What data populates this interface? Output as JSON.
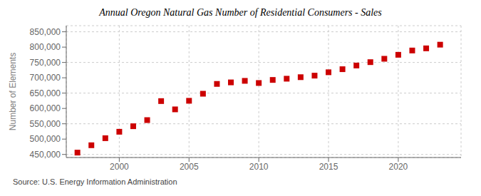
{
  "chart_data": {
    "type": "scatter",
    "title": "Annual Oregon Natural Gas Number of Residential Consumers - Sales",
    "ylabel": "Number of Elements",
    "annotations": [
      "Source: U.S. Energy Information Administration"
    ],
    "x": [
      1997,
      1998,
      1999,
      2000,
      2001,
      2002,
      2003,
      2004,
      2005,
      2006,
      2007,
      2008,
      2009,
      2010,
      2011,
      2012,
      2013,
      2014,
      2015,
      2016,
      2017,
      2018,
      2019,
      2020,
      2021,
      2022,
      2023
    ],
    "values": [
      456000,
      480000,
      503000,
      524000,
      542000,
      562000,
      624000,
      597000,
      625000,
      648000,
      680000,
      685000,
      690000,
      683000,
      693000,
      697000,
      702000,
      707000,
      718000,
      728000,
      740000,
      751000,
      762000,
      775000,
      789000,
      796000,
      808000
    ],
    "color": "#cc0000",
    "marker": "square",
    "grid": true,
    "xlim": [
      1996.2,
      2024.5
    ],
    "xticks": [
      2000,
      2005,
      2010,
      2015,
      2020
    ],
    "ylim": [
      440000,
      870000
    ],
    "yticks": [
      {
        "value": 450000,
        "label": "450,000"
      },
      {
        "value": 500000,
        "label": "500,000"
      },
      {
        "value": 550000,
        "label": "550,000"
      },
      {
        "value": 600000,
        "label": "600,000"
      },
      {
        "value": 650000,
        "label": "650,000"
      },
      {
        "value": 700000,
        "label": "700,000"
      },
      {
        "value": 750000,
        "label": "750,000"
      },
      {
        "value": 800000,
        "label": "800,000"
      },
      {
        "value": 850000,
        "label": "850,000"
      }
    ]
  }
}
